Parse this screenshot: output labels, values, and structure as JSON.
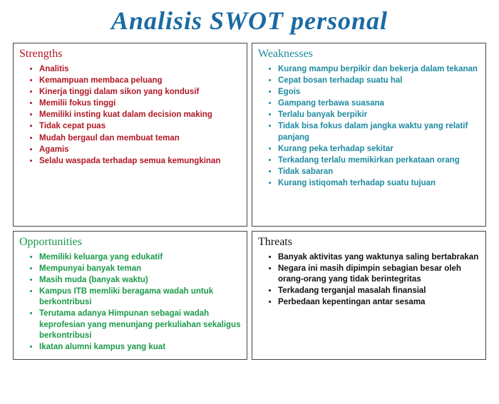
{
  "title": "Analisis SWOT personal",
  "title_color": "#1a6aa3",
  "background_color": "#ffffff",
  "border_color": "#444444",
  "layout": {
    "rows": 2,
    "cols": 2
  },
  "row_heights": [
    "258px",
    "auto"
  ],
  "quadrants": [
    {
      "key": "strengths",
      "title": "Strengths",
      "title_color": "#b01724",
      "text_color": "#b01724",
      "bullet_color": "#b01724",
      "items": [
        "Analitis",
        "Kemampuan membaca peluang",
        "Kinerja tinggi dalam sikon yang kondusif",
        "Memilii fokus tinggi",
        "Memiliki insting kuat dalam decision making",
        "Tidak cepat puas",
        "Mudah bergaul dan membuat teman",
        "Agamis",
        "Selalu waspada terhadap semua kemungkinan"
      ]
    },
    {
      "key": "weaknesses",
      "title": "Weaknesses",
      "title_color": "#1e8aa0",
      "text_color": "#1e8aa0",
      "bullet_color": "#1e8aa0",
      "items": [
        "Kurang mampu berpikir dan bekerja dalam tekanan",
        "Cepat bosan terhadap suatu hal",
        "Egois",
        "Gampang terbawa suasana",
        "Terlalu banyak berpikir",
        "Tidak bisa fokus dalam jangka waktu yang relatif panjang",
        "Kurang peka terhadap sekitar",
        "Terkadang terlalu memikirkan perkataan orang",
        "Tidak sabaran",
        "Kurang istiqomah terhadap suatu tujuan"
      ]
    },
    {
      "key": "opportunities",
      "title": "Opportunities",
      "title_color": "#1a9a4a",
      "text_color": "#1a9a4a",
      "bullet_color": "#1a9a4a",
      "items": [
        "Memiliki keluarga yang edukatif",
        "Mempunyai banyak teman",
        "Masih muda (banyak waktu)",
        "Kampus ITB memliki beragama wadah untuk berkontribusi",
        "Terutama adanya Himpunan sebagai wadah keprofesian yang menunjang perkuliahan sekaligus berkontribusi",
        "Ikatan alumni kampus yang kuat"
      ]
    },
    {
      "key": "threats",
      "title": "Threats",
      "title_color": "#111111",
      "text_color": "#111111",
      "bullet_color": "#111111",
      "items": [
        "Banyak aktivitas yang waktunya saling bertabrakan",
        "Negara ini masih dipimpin sebagian besar oleh orang-orang yang tidak berintegritas",
        "Terkadang terganjal masalah finansial",
        "Perbedaan kepentingan antar sesama"
      ]
    }
  ]
}
